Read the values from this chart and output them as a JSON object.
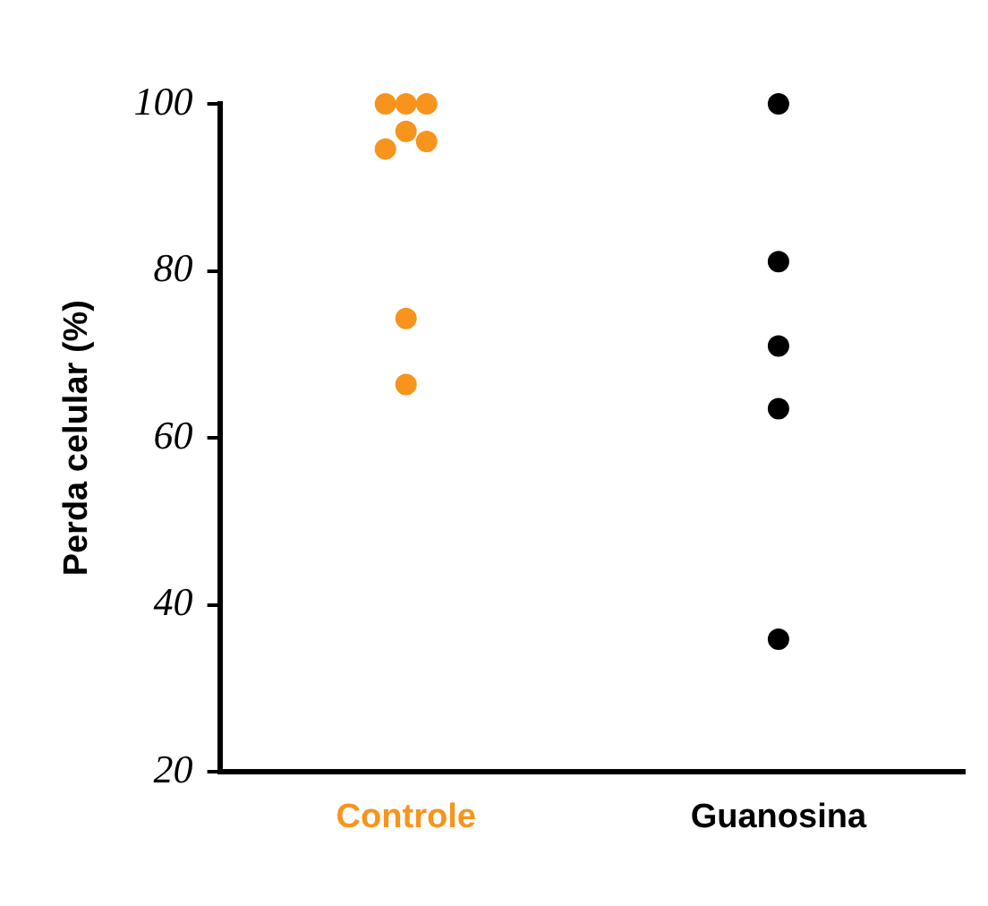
{
  "chart_data": {
    "type": "scatter",
    "ylabel": "Perda celular (%)",
    "categories": [
      "Controle",
      "Guanosina"
    ],
    "series": [
      {
        "color": "#f7941d",
        "x": [
          "Controle",
          "Controle",
          "Controle",
          "Controle",
          "Controle",
          "Controle",
          "Controle",
          "Controle"
        ],
        "values": [
          100,
          100,
          100,
          96.7,
          95.5,
          94.6,
          74.3,
          66.4
        ]
      },
      {
        "color": "#000000",
        "x": [
          "Guanosina",
          "Guanosina",
          "Guanosina",
          "Guanosina",
          "Guanosina"
        ],
        "values": [
          100,
          81.1,
          71,
          63.5,
          35.9
        ]
      }
    ],
    "ylim": [
      20,
      100
    ],
    "yticks": [
      20,
      40,
      60,
      80,
      100
    ],
    "grid": false,
    "legend": false,
    "marker": "circle"
  }
}
